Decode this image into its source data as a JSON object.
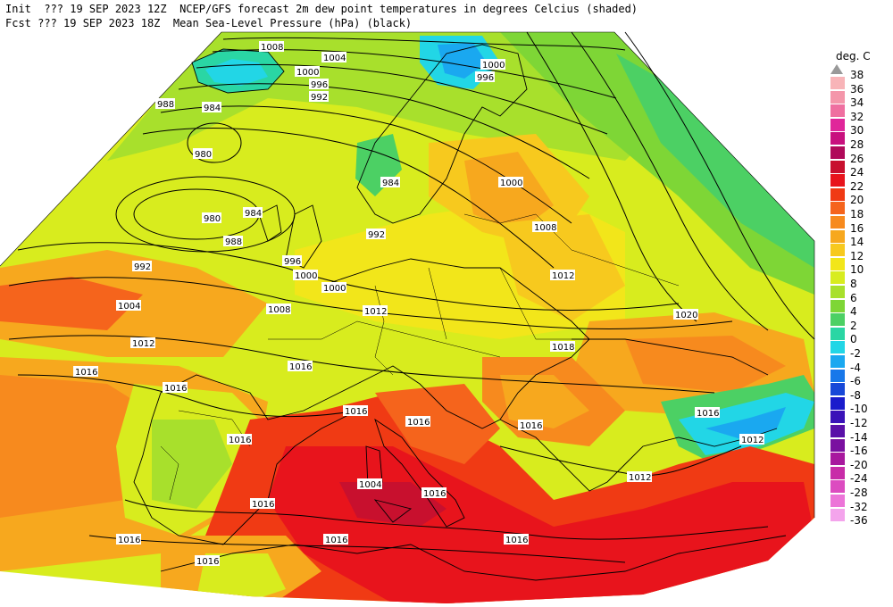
{
  "header": {
    "line1": "Init  ??? 19 SEP 2023 12Z  NCEP/GFS forecast 2m dew point temperatures in degrees Celcius (shaded)",
    "line2": "Fcst ??? 19 SEP 2023 18Z  Mean Sea-Level Pressure (hPa) (black)"
  },
  "legend": {
    "unit": "deg. C",
    "items": [
      {
        "label": "38",
        "color": "#ffffff"
      },
      {
        "label": "36",
        "color": "#f8b4b8"
      },
      {
        "label": "34",
        "color": "#f496aa"
      },
      {
        "label": "32",
        "color": "#ef6fa0"
      },
      {
        "label": "30",
        "color": "#e0269a"
      },
      {
        "label": "28",
        "color": "#c8107e"
      },
      {
        "label": "26",
        "color": "#b00a5a"
      },
      {
        "label": "24",
        "color": "#c8102e"
      },
      {
        "label": "22",
        "color": "#e8141c"
      },
      {
        "label": "20",
        "color": "#f03a14"
      },
      {
        "label": "18",
        "color": "#f5641c"
      },
      {
        "label": "16",
        "color": "#f78a1e"
      },
      {
        "label": "14",
        "color": "#f7a81e"
      },
      {
        "label": "12",
        "color": "#f7c91e"
      },
      {
        "label": "10",
        "color": "#f2e61a"
      },
      {
        "label": "8",
        "color": "#d8ec1e"
      },
      {
        "label": "6",
        "color": "#a8e02c"
      },
      {
        "label": "4",
        "color": "#7ed636"
      },
      {
        "label": "2",
        "color": "#4cd064"
      },
      {
        "label": "0",
        "color": "#2ad6a4"
      },
      {
        "label": "-2",
        "color": "#22d6e6"
      },
      {
        "label": "-4",
        "color": "#1aa8f0"
      },
      {
        "label": "-6",
        "color": "#1878ea"
      },
      {
        "label": "-8",
        "color": "#1848d8"
      },
      {
        "label": "-10",
        "color": "#1a1ccc"
      },
      {
        "label": "-12",
        "color": "#3a12b8"
      },
      {
        "label": "-14",
        "color": "#5a10a8"
      },
      {
        "label": "-16",
        "color": "#7a10a0"
      },
      {
        "label": "-20",
        "color": "#a8189e"
      },
      {
        "label": "-24",
        "color": "#c82ca8"
      },
      {
        "label": "-28",
        "color": "#dc4cc0"
      },
      {
        "label": "-32",
        "color": "#ec74d8"
      },
      {
        "label": "-36",
        "color": "#f4a4ec"
      }
    ]
  },
  "isobars": [
    "1008",
    "1004",
    "1000",
    "996",
    "992",
    "988",
    "984",
    "980",
    "980",
    "984",
    "988",
    "992",
    "1000",
    "1004",
    "1008",
    "1012",
    "1016",
    "1016",
    "1016",
    "1016",
    "1016",
    "1016",
    "1016",
    "1016",
    "1016",
    "1012",
    "1012",
    "1012",
    "1008",
    "1000",
    "996",
    "1000",
    "1020",
    "1016",
    "1012",
    "1016",
    "1018",
    "992",
    "996",
    "1000",
    "1016",
    "1004",
    "984",
    "1016",
    "1016"
  ]
}
